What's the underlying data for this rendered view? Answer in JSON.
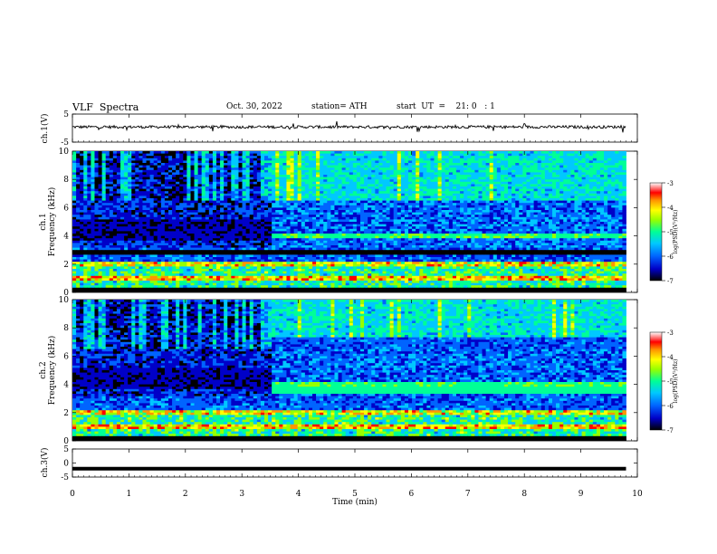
{
  "header": {
    "title": "VLF  Spectra",
    "date": "Oct. 30, 2022",
    "station": "station= ATH",
    "start": "start  UT  =    21: 0   : 1"
  },
  "chart_data": [
    {
      "type": "line",
      "panel": "ch1-waveform",
      "ylabel": "ch.1(V)",
      "ylim": [
        -5,
        5
      ],
      "yticks": [
        5,
        -5
      ],
      "series": [
        {
          "values_description_only": false,
          "level_v": 0.4,
          "noise_amplitude_v": 1.0
        }
      ]
    },
    {
      "type": "heatmap",
      "panel": "ch1-spectrogram",
      "ylabel": "Frequency  (kHz)",
      "channel_label": "ch.1",
      "ylim": [
        0,
        10
      ],
      "yticks": [
        0,
        2,
        4,
        6,
        8,
        10
      ],
      "transition_time_min": 3.5,
      "data_end_time_min": 9.8
    },
    {
      "type": "heatmap",
      "panel": "ch2-spectrogram",
      "ylabel": "Frequency  (kHz)",
      "channel_label": "ch.2",
      "ylim": [
        0,
        10
      ],
      "yticks": [
        0,
        2,
        4,
        6,
        8,
        10
      ],
      "transition_time_min": 3.5,
      "data_end_time_min": 9.8
    },
    {
      "type": "line",
      "panel": "ch3-waveform",
      "ylabel": "ch.3(V)",
      "ylim": [
        -5,
        5
      ],
      "yticks": [
        5,
        0,
        -5
      ],
      "series": [
        {
          "level_v": -2.0
        }
      ]
    }
  ],
  "xaxis": {
    "label": "Time  (min)",
    "xlim": [
      0,
      10
    ],
    "ticks": [
      "0",
      "1",
      "2",
      "3",
      "4",
      "5",
      "6",
      "7",
      "8",
      "9",
      "10"
    ]
  },
  "colorbar": {
    "label": "log(PSD)(V²/Hz)",
    "ticks": [
      "-3",
      "-4",
      "-5",
      "-6",
      "-7"
    ],
    "range": [
      -7,
      -3
    ],
    "colors": [
      "#000000",
      "#0000c8",
      "#0064ff",
      "#00c8ff",
      "#00ff96",
      "#96ff00",
      "#ffff00",
      "#ff9600",
      "#ff0000",
      "#ffffff"
    ]
  }
}
